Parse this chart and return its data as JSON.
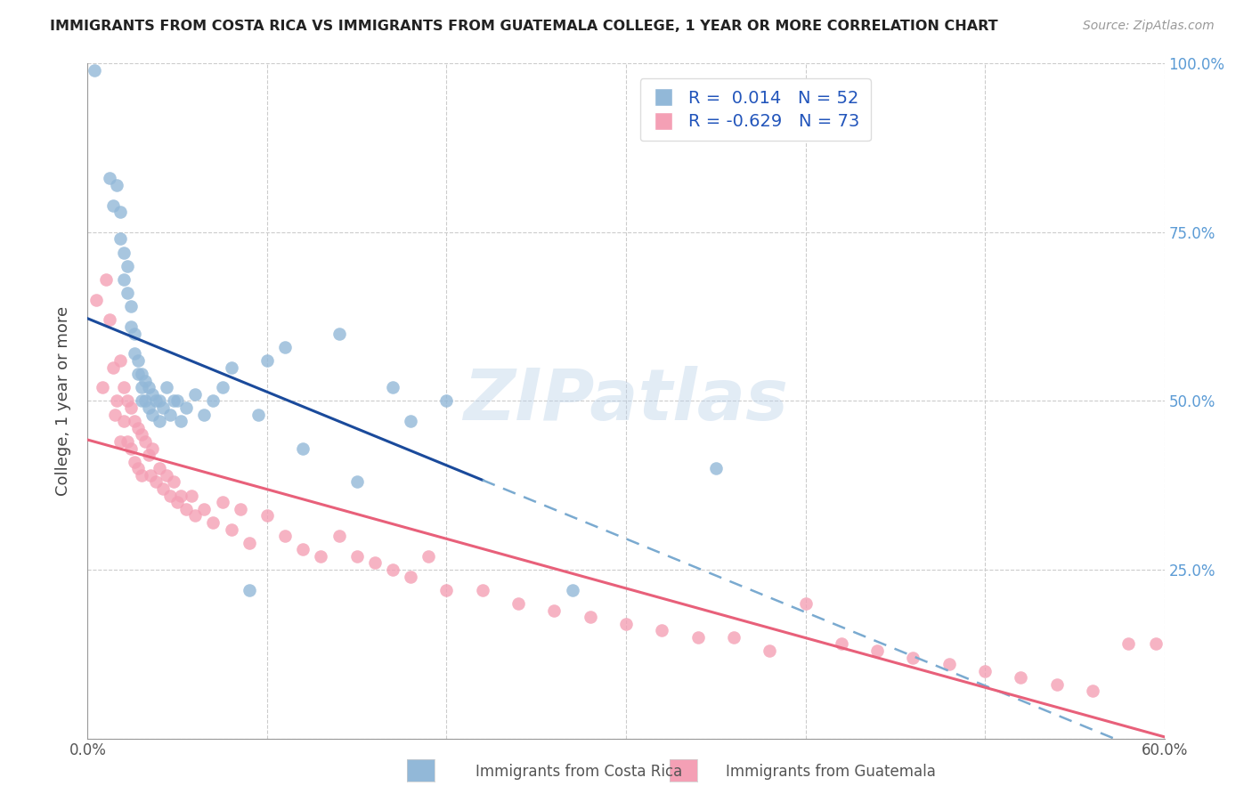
{
  "title": "IMMIGRANTS FROM COSTA RICA VS IMMIGRANTS FROM GUATEMALA COLLEGE, 1 YEAR OR MORE CORRELATION CHART",
  "source": "Source: ZipAtlas.com",
  "ylabel": "College, 1 year or more",
  "xmin": 0.0,
  "xmax": 0.6,
  "ymin": 0.0,
  "ymax": 1.0,
  "x_ticks": [
    0.0,
    0.1,
    0.2,
    0.3,
    0.4,
    0.5,
    0.6
  ],
  "y_ticks": [
    0.0,
    0.25,
    0.5,
    0.75,
    1.0
  ],
  "color_blue": "#92B8D8",
  "color_pink": "#F4A0B5",
  "line_blue_solid": "#1A4A9B",
  "line_blue_dash": "#7AAAD0",
  "line_pink": "#E8607A",
  "watermark_text": "ZIPatlas",
  "legend_label1": "Immigrants from Costa Rica",
  "legend_label2": "Immigrants from Guatemala",
  "cr_R": 0.014,
  "cr_N": 52,
  "gt_R": -0.629,
  "gt_N": 73,
  "costa_rica_x": [
    0.004,
    0.012,
    0.014,
    0.016,
    0.018,
    0.018,
    0.02,
    0.02,
    0.022,
    0.022,
    0.024,
    0.024,
    0.026,
    0.026,
    0.028,
    0.028,
    0.03,
    0.03,
    0.03,
    0.032,
    0.032,
    0.034,
    0.034,
    0.036,
    0.036,
    0.038,
    0.04,
    0.04,
    0.042,
    0.044,
    0.046,
    0.048,
    0.05,
    0.052,
    0.055,
    0.06,
    0.065,
    0.07,
    0.075,
    0.08,
    0.09,
    0.095,
    0.1,
    0.11,
    0.12,
    0.14,
    0.15,
    0.17,
    0.18,
    0.2,
    0.27,
    0.35
  ],
  "costa_rica_y": [
    0.99,
    0.83,
    0.79,
    0.82,
    0.78,
    0.74,
    0.72,
    0.68,
    0.7,
    0.66,
    0.64,
    0.61,
    0.6,
    0.57,
    0.56,
    0.54,
    0.54,
    0.52,
    0.5,
    0.53,
    0.5,
    0.52,
    0.49,
    0.51,
    0.48,
    0.5,
    0.5,
    0.47,
    0.49,
    0.52,
    0.48,
    0.5,
    0.5,
    0.47,
    0.49,
    0.51,
    0.48,
    0.5,
    0.52,
    0.55,
    0.22,
    0.48,
    0.56,
    0.58,
    0.43,
    0.6,
    0.38,
    0.52,
    0.47,
    0.5,
    0.22,
    0.4
  ],
  "guatemala_x": [
    0.005,
    0.008,
    0.01,
    0.012,
    0.014,
    0.015,
    0.016,
    0.018,
    0.018,
    0.02,
    0.02,
    0.022,
    0.022,
    0.024,
    0.024,
    0.026,
    0.026,
    0.028,
    0.028,
    0.03,
    0.03,
    0.032,
    0.034,
    0.035,
    0.036,
    0.038,
    0.04,
    0.042,
    0.044,
    0.046,
    0.048,
    0.05,
    0.052,
    0.055,
    0.058,
    0.06,
    0.065,
    0.07,
    0.075,
    0.08,
    0.085,
    0.09,
    0.1,
    0.11,
    0.12,
    0.13,
    0.14,
    0.15,
    0.16,
    0.17,
    0.18,
    0.19,
    0.2,
    0.22,
    0.24,
    0.26,
    0.28,
    0.3,
    0.32,
    0.34,
    0.36,
    0.38,
    0.4,
    0.42,
    0.44,
    0.46,
    0.48,
    0.5,
    0.52,
    0.54,
    0.56,
    0.58,
    0.595
  ],
  "guatemala_y": [
    0.65,
    0.52,
    0.68,
    0.62,
    0.55,
    0.48,
    0.5,
    0.56,
    0.44,
    0.52,
    0.47,
    0.5,
    0.44,
    0.49,
    0.43,
    0.47,
    0.41,
    0.46,
    0.4,
    0.45,
    0.39,
    0.44,
    0.42,
    0.39,
    0.43,
    0.38,
    0.4,
    0.37,
    0.39,
    0.36,
    0.38,
    0.35,
    0.36,
    0.34,
    0.36,
    0.33,
    0.34,
    0.32,
    0.35,
    0.31,
    0.34,
    0.29,
    0.33,
    0.3,
    0.28,
    0.27,
    0.3,
    0.27,
    0.26,
    0.25,
    0.24,
    0.27,
    0.22,
    0.22,
    0.2,
    0.19,
    0.18,
    0.17,
    0.16,
    0.15,
    0.15,
    0.13,
    0.2,
    0.14,
    0.13,
    0.12,
    0.11,
    0.1,
    0.09,
    0.08,
    0.07,
    0.14,
    0.14
  ]
}
